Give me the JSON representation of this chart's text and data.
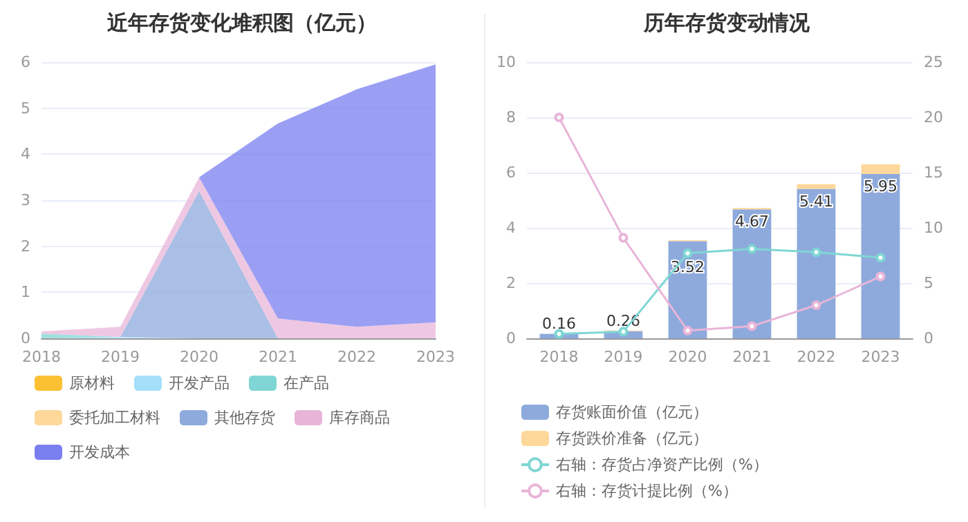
{
  "chart_data": [
    {
      "type": "area",
      "title": "近年存货变化堆积图（亿元）",
      "categories": [
        "2018",
        "2019",
        "2020",
        "2021",
        "2022",
        "2023"
      ],
      "stacked": true,
      "series": [
        {
          "name": "原材料",
          "color": "#fbc133",
          "values": [
            null,
            null,
            null,
            null,
            null,
            null
          ]
        },
        {
          "name": "开发产品",
          "color": "#a5dff9",
          "values": [
            0,
            0.03,
            0,
            0,
            0,
            0
          ]
        },
        {
          "name": "在产品",
          "color": "#7fd6d4",
          "values": [
            0.1,
            0,
            0,
            0,
            0,
            0
          ]
        },
        {
          "name": "委托加工材料",
          "color": "#fdd89a",
          "values": [
            null,
            null,
            null,
            null,
            null,
            null
          ]
        },
        {
          "name": "其他存货",
          "color": "#8eaadc",
          "values": [
            0,
            0,
            3.2,
            0,
            0,
            0
          ]
        },
        {
          "name": "库存商品",
          "color": "#e8b5d8",
          "values": [
            0.05,
            0.22,
            0.3,
            0.43,
            0.25,
            0.35
          ]
        },
        {
          "name": "开发成本",
          "color": "#7a7ff0",
          "values": [
            0,
            0,
            0,
            4.24,
            5.16,
            5.6
          ]
        }
      ],
      "ylim": [
        0,
        6
      ],
      "yticks": [
        0,
        1,
        2,
        3,
        4,
        5,
        6
      ],
      "grid": "y",
      "legend": "bottom",
      "marker": "none"
    },
    {
      "type": "bar",
      "title": "历年存货变动情况",
      "categories": [
        "2018",
        "2019",
        "2020",
        "2021",
        "2022",
        "2023"
      ],
      "stacked": true,
      "series": [
        {
          "name": "存货账面价值（亿元）",
          "color": "#8eaadc",
          "values": [
            0.16,
            0.26,
            3.52,
            4.67,
            5.41,
            5.95
          ],
          "value_labels": [
            "0.16",
            "0.26",
            "3.52",
            "4.67",
            "5.41",
            "5.95"
          ]
        },
        {
          "name": "存货跌价准备（亿元）",
          "color": "#fdd89a",
          "values": [
            null,
            0.02,
            0.03,
            0.05,
            0.17,
            0.35
          ]
        },
        {
          "name": "右轴：存货占净资产比例（%）",
          "type": "line",
          "axis": "y2",
          "color": "#7fd6d4",
          "values": [
            0.4,
            0.6,
            7.7,
            8.1,
            7.8,
            7.3
          ]
        },
        {
          "name": "右轴：存货计提比例（%）",
          "type": "line",
          "axis": "y2",
          "color": "#e8b5d8",
          "values": [
            20,
            9.1,
            0.7,
            1.1,
            3.0,
            5.6
          ]
        }
      ],
      "ylim": [
        0,
        10
      ],
      "yticks": [
        0,
        2,
        4,
        6,
        8,
        10
      ],
      "y2lim": [
        0,
        25
      ],
      "y2ticks": [
        0,
        5,
        10,
        15,
        20,
        25
      ],
      "grid": "y",
      "legend": "bottom",
      "marker": "circle"
    }
  ]
}
